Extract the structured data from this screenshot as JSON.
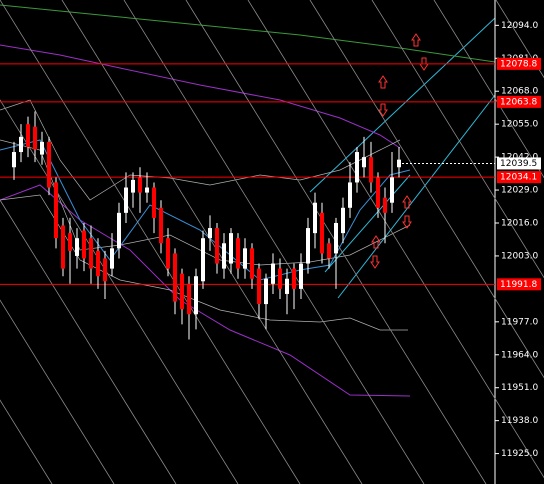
{
  "chart_data": {
    "type": "candlestick",
    "ylim": [
      11913,
      12104
    ],
    "yticks": [
      {
        "value": 12094,
        "label": "12094.0"
      },
      {
        "value": 12081,
        "label": "12081.0"
      },
      {
        "value": 12068,
        "label": "12068.0"
      },
      {
        "value": 12055,
        "label": "12055.0"
      },
      {
        "value": 12042,
        "label": "12042.0"
      },
      {
        "value": 12029,
        "label": "12029.0"
      },
      {
        "value": 12016,
        "label": "12016.0"
      },
      {
        "value": 12003,
        "label": "12003.0"
      },
      {
        "value": 11977,
        "label": "11977.0"
      },
      {
        "value": 11964,
        "label": "11964.0"
      },
      {
        "value": 11951,
        "label": "11951.0"
      },
      {
        "value": 11938,
        "label": "11938.0"
      },
      {
        "value": 11925,
        "label": "11925.0"
      }
    ],
    "up_color": "#ffffff",
    "down_color": "#ff0000",
    "open": [
      12038,
      12044,
      12055,
      12054,
      12043,
      12048,
      12032,
      12015,
      12012,
      12003,
      12013,
      12010,
      12005,
      12002,
      11998,
      12006,
      12020,
      12028,
      12034,
      12028,
      12030,
      12022,
      12010,
      12004,
      11996,
      11992,
      11980,
      11993,
      12010,
      12014,
      11998,
      12000,
      12010,
      11998,
      12006,
      11998,
      11984,
      11992,
      11998,
      11988,
      11998,
      11990,
      12000,
      12012,
      12020,
      12008,
      12004,
      12012,
      12022,
      12032,
      12038,
      12042,
      12034,
      12026,
      12024,
      12038
    ],
    "high": [
      12048,
      12055,
      12058,
      12060,
      12052,
      12050,
      12034,
      12018,
      12018,
      12014,
      12016,
      12015,
      12010,
      12005,
      12012,
      12024,
      12036,
      12036,
      12038,
      12036,
      12032,
      12025,
      12014,
      12006,
      11998,
      11995,
      11998,
      12013,
      12019,
      12016,
      12012,
      12014,
      12012,
      12010,
      12008,
      12000,
      11996,
      12004,
      12002,
      11998,
      12000,
      12004,
      12018,
      12028,
      12024,
      12010,
      12018,
      12026,
      12040,
      12046,
      12050,
      12048,
      12036,
      12030,
      12044,
      12046
    ],
    "low": [
      12033,
      12040,
      12042,
      12040,
      12039,
      12027,
      12006,
      11995,
      11992,
      11998,
      11997,
      11992,
      11990,
      11986,
      11995,
      12002,
      12016,
      12022,
      12020,
      12024,
      12012,
      12004,
      11995,
      11980,
      11976,
      11970,
      11974,
      11990,
      12005,
      11996,
      11994,
      11996,
      11994,
      11994,
      11990,
      11978,
      11974,
      11988,
      11986,
      11980,
      11982,
      11986,
      11996,
      12006,
      12000,
      11998,
      11990,
      12008,
      12018,
      12028,
      12034,
      12028,
      12018,
      12008,
      12020,
      12034
    ],
    "close": [
      12044,
      12050,
      12046,
      12045,
      12048,
      12030,
      12010,
      11998,
      12005,
      12010,
      12002,
      11998,
      11995,
      11993,
      12006,
      12020,
      12030,
      12033,
      12028,
      12030,
      12018,
      12008,
      11998,
      11985,
      11982,
      11980,
      11995,
      12010,
      12014,
      12000,
      12008,
      12012,
      11998,
      12006,
      11994,
      11984,
      11994,
      12000,
      11990,
      11994,
      11990,
      12000,
      12014,
      12024,
      12004,
      12002,
      12016,
      12022,
      12032,
      12044,
      12042,
      12032,
      12022,
      12020,
      12034,
      12041
    ],
    "levels": [
      12078.8,
      12063.8,
      12034.1,
      11991.8
    ],
    "level_color": "#ff0000",
    "current_price": 12039.5
  }
}
